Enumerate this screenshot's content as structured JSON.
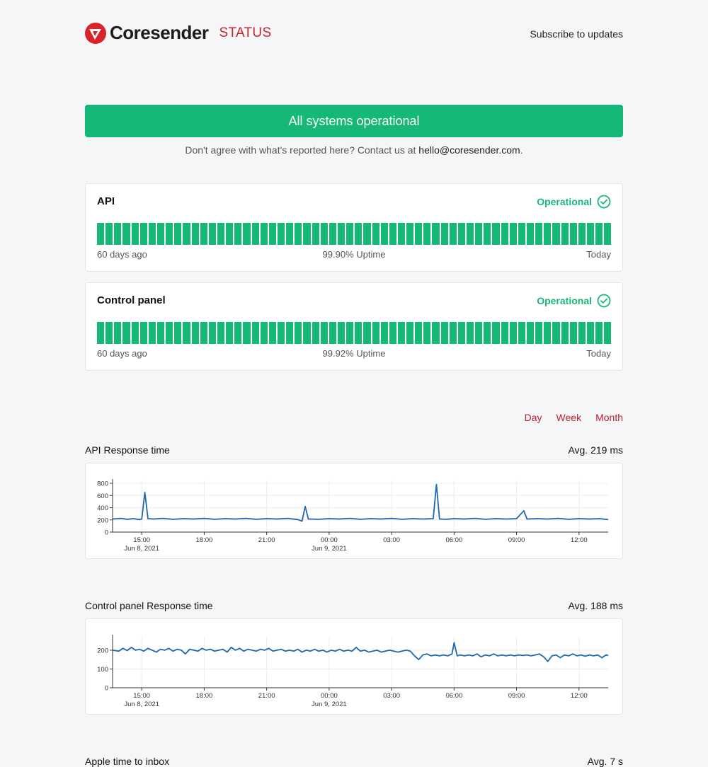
{
  "header": {
    "brand": "Coresender",
    "status_label": "STATUS",
    "subscribe_label": "Subscribe to updates"
  },
  "banner": {
    "text": "All systems operational",
    "contact_prefix": "Don't agree with what's reported here? Contact us at ",
    "contact_email": "hello@coresender.com",
    "contact_suffix": "."
  },
  "components": [
    {
      "name": "API",
      "status": "Operational",
      "left_label": "60 days ago",
      "uptime": "99.90% Uptime",
      "right_label": "Today",
      "days": 60
    },
    {
      "name": "Control panel",
      "status": "Operational",
      "left_label": "60 days ago",
      "uptime": "99.92% Uptime",
      "right_label": "Today",
      "days": 60
    }
  ],
  "ranges": [
    "Day",
    "Week",
    "Month"
  ],
  "metrics": [
    {
      "title": "API Response time",
      "avg": "Avg. 219 ms"
    },
    {
      "title": "Control panel Response time",
      "avg": "Avg. 188 ms"
    },
    {
      "title": "Apple time to inbox",
      "avg": "Avg. 7 s"
    }
  ],
  "colors": {
    "accent": "#16b877",
    "brand": "#c8232c",
    "line": "#1f68b0"
  },
  "chart_data": [
    {
      "type": "line",
      "title": "API Response time",
      "y_ticks": [
        0,
        200,
        400,
        600,
        800
      ],
      "ylim": [
        0,
        800
      ],
      "x_tick_labels": [
        "15:00",
        "18:00",
        "21:00",
        "00:00",
        "03:00",
        "06:00",
        "09:00",
        "12:00"
      ],
      "x_sub_labels": [
        "Jun 8, 2021",
        "",
        "",
        "Jun 9, 2021",
        "",
        "",
        "",
        ""
      ],
      "x_range_hours": [
        13.6,
        37.4
      ],
      "series": [
        {
          "values": [
            [
              13.6,
              215
            ],
            [
              14.0,
              225
            ],
            [
              14.3,
              210
            ],
            [
              14.6,
              220
            ],
            [
              14.9,
              205
            ],
            [
              15.0,
              215
            ],
            [
              15.15,
              650
            ],
            [
              15.3,
              220
            ],
            [
              15.6,
              215
            ],
            [
              16.0,
              225
            ],
            [
              16.5,
              210
            ],
            [
              17.0,
              220
            ],
            [
              17.5,
              215
            ],
            [
              18.0,
              225
            ],
            [
              18.5,
              210
            ],
            [
              19.0,
              220
            ],
            [
              19.5,
              215
            ],
            [
              20.0,
              225
            ],
            [
              20.5,
              210
            ],
            [
              21.0,
              220
            ],
            [
              21.5,
              215
            ],
            [
              22.0,
              225
            ],
            [
              22.5,
              205
            ],
            [
              22.7,
              180
            ],
            [
              22.85,
              420
            ],
            [
              23.0,
              215
            ],
            [
              23.5,
              210
            ],
            [
              24.0,
              220
            ],
            [
              24.5,
              215
            ],
            [
              25.0,
              225
            ],
            [
              25.5,
              210
            ],
            [
              26.0,
              220
            ],
            [
              26.5,
              215
            ],
            [
              27.0,
              225
            ],
            [
              27.5,
              210
            ],
            [
              28.0,
              220
            ],
            [
              28.5,
              215
            ],
            [
              29.0,
              220
            ],
            [
              29.15,
              780
            ],
            [
              29.3,
              215
            ],
            [
              29.6,
              210
            ],
            [
              30.0,
              220
            ],
            [
              30.5,
              215
            ],
            [
              31.0,
              225
            ],
            [
              31.5,
              210
            ],
            [
              32.0,
              220
            ],
            [
              32.5,
              215
            ],
            [
              33.0,
              220
            ],
            [
              33.35,
              350
            ],
            [
              33.5,
              215
            ],
            [
              34.0,
              220
            ],
            [
              34.5,
              215
            ],
            [
              35.0,
              225
            ],
            [
              35.5,
              210
            ],
            [
              36.0,
              220
            ],
            [
              36.5,
              215
            ],
            [
              37.0,
              220
            ],
            [
              37.4,
              205
            ]
          ]
        }
      ]
    },
    {
      "type": "line",
      "title": "Control panel Response time",
      "y_ticks": [
        0,
        100,
        200
      ],
      "ylim": [
        0,
        260
      ],
      "x_tick_labels": [
        "15:00",
        "18:00",
        "21:00",
        "00:00",
        "03:00",
        "06:00",
        "09:00",
        "12:00"
      ],
      "x_sub_labels": [
        "Jun 8, 2021",
        "",
        "",
        "Jun 9, 2021",
        "",
        "",
        "",
        ""
      ],
      "x_range_hours": [
        13.6,
        37.4
      ],
      "series": [
        {
          "values": [
            [
              13.6,
              200
            ],
            [
              13.9,
              195
            ],
            [
              14.1,
              210
            ],
            [
              14.3,
              198
            ],
            [
              14.5,
              215
            ],
            [
              14.7,
              200
            ],
            [
              14.9,
              205
            ],
            [
              15.1,
              195
            ],
            [
              15.3,
              210
            ],
            [
              15.5,
              200
            ],
            [
              15.7,
              190
            ],
            [
              15.9,
              205
            ],
            [
              16.1,
              200
            ],
            [
              16.3,
              210
            ],
            [
              16.5,
              195
            ],
            [
              16.7,
              205
            ],
            [
              16.9,
              200
            ],
            [
              17.1,
              180
            ],
            [
              17.3,
              205
            ],
            [
              17.5,
              200
            ],
            [
              17.7,
              195
            ],
            [
              17.9,
              210
            ],
            [
              18.1,
              200
            ],
            [
              18.3,
              205
            ],
            [
              18.5,
              195
            ],
            [
              18.7,
              200
            ],
            [
              18.9,
              205
            ],
            [
              19.1,
              190
            ],
            [
              19.3,
              215
            ],
            [
              19.5,
              200
            ],
            [
              19.7,
              210
            ],
            [
              19.9,
              195
            ],
            [
              20.1,
              205
            ],
            [
              20.3,
              200
            ],
            [
              20.5,
              195
            ],
            [
              20.7,
              205
            ],
            [
              20.9,
              200
            ],
            [
              21.1,
              210
            ],
            [
              21.3,
              195
            ],
            [
              21.5,
              200
            ],
            [
              21.7,
              205
            ],
            [
              21.9,
              195
            ],
            [
              22.1,
              200
            ],
            [
              22.3,
              195
            ],
            [
              22.5,
              205
            ],
            [
              22.7,
              190
            ],
            [
              22.9,
              200
            ],
            [
              23.1,
              195
            ],
            [
              23.3,
              205
            ],
            [
              23.5,
              195
            ],
            [
              23.7,
              200
            ],
            [
              23.9,
              190
            ],
            [
              24.1,
              200
            ],
            [
              24.3,
              195
            ],
            [
              24.5,
              205
            ],
            [
              24.7,
              195
            ],
            [
              24.9,
              200
            ],
            [
              25.1,
              195
            ],
            [
              25.3,
              215
            ],
            [
              25.5,
              195
            ],
            [
              25.7,
              200
            ],
            [
              25.9,
              190
            ],
            [
              26.1,
              195
            ],
            [
              26.3,
              200
            ],
            [
              26.5,
              190
            ],
            [
              26.7,
              195
            ],
            [
              26.9,
              200
            ],
            [
              27.1,
              195
            ],
            [
              27.3,
              190
            ],
            [
              27.5,
              195
            ],
            [
              27.7,
              200
            ],
            [
              27.9,
              195
            ],
            [
              28.1,
              170
            ],
            [
              28.3,
              150
            ],
            [
              28.5,
              175
            ],
            [
              28.7,
              180
            ],
            [
              28.9,
              170
            ],
            [
              29.1,
              175
            ],
            [
              29.3,
              170
            ],
            [
              29.5,
              175
            ],
            [
              29.7,
              170
            ],
            [
              29.9,
              180
            ],
            [
              30.0,
              240
            ],
            [
              30.15,
              170
            ],
            [
              30.3,
              175
            ],
            [
              30.5,
              170
            ],
            [
              30.7,
              175
            ],
            [
              30.9,
              170
            ],
            [
              31.1,
              180
            ],
            [
              31.3,
              165
            ],
            [
              31.5,
              175
            ],
            [
              31.7,
              170
            ],
            [
              31.9,
              180
            ],
            [
              32.1,
              170
            ],
            [
              32.3,
              175
            ],
            [
              32.5,
              170
            ],
            [
              32.7,
              175
            ],
            [
              32.9,
              170
            ],
            [
              33.1,
              175
            ],
            [
              33.3,
              172
            ],
            [
              33.5,
              175
            ],
            [
              33.7,
              170
            ],
            [
              33.9,
              175
            ],
            [
              34.1,
              180
            ],
            [
              34.3,
              165
            ],
            [
              34.5,
              140
            ],
            [
              34.7,
              170
            ],
            [
              34.9,
              175
            ],
            [
              35.1,
              160
            ],
            [
              35.3,
              175
            ],
            [
              35.5,
              170
            ],
            [
              35.7,
              180
            ],
            [
              35.9,
              170
            ],
            [
              36.1,
              175
            ],
            [
              36.3,
              168
            ],
            [
              36.5,
              175
            ],
            [
              36.7,
              170
            ],
            [
              36.9,
              175
            ],
            [
              37.1,
              160
            ],
            [
              37.3,
              175
            ],
            [
              37.4,
              172
            ]
          ]
        }
      ]
    }
  ]
}
